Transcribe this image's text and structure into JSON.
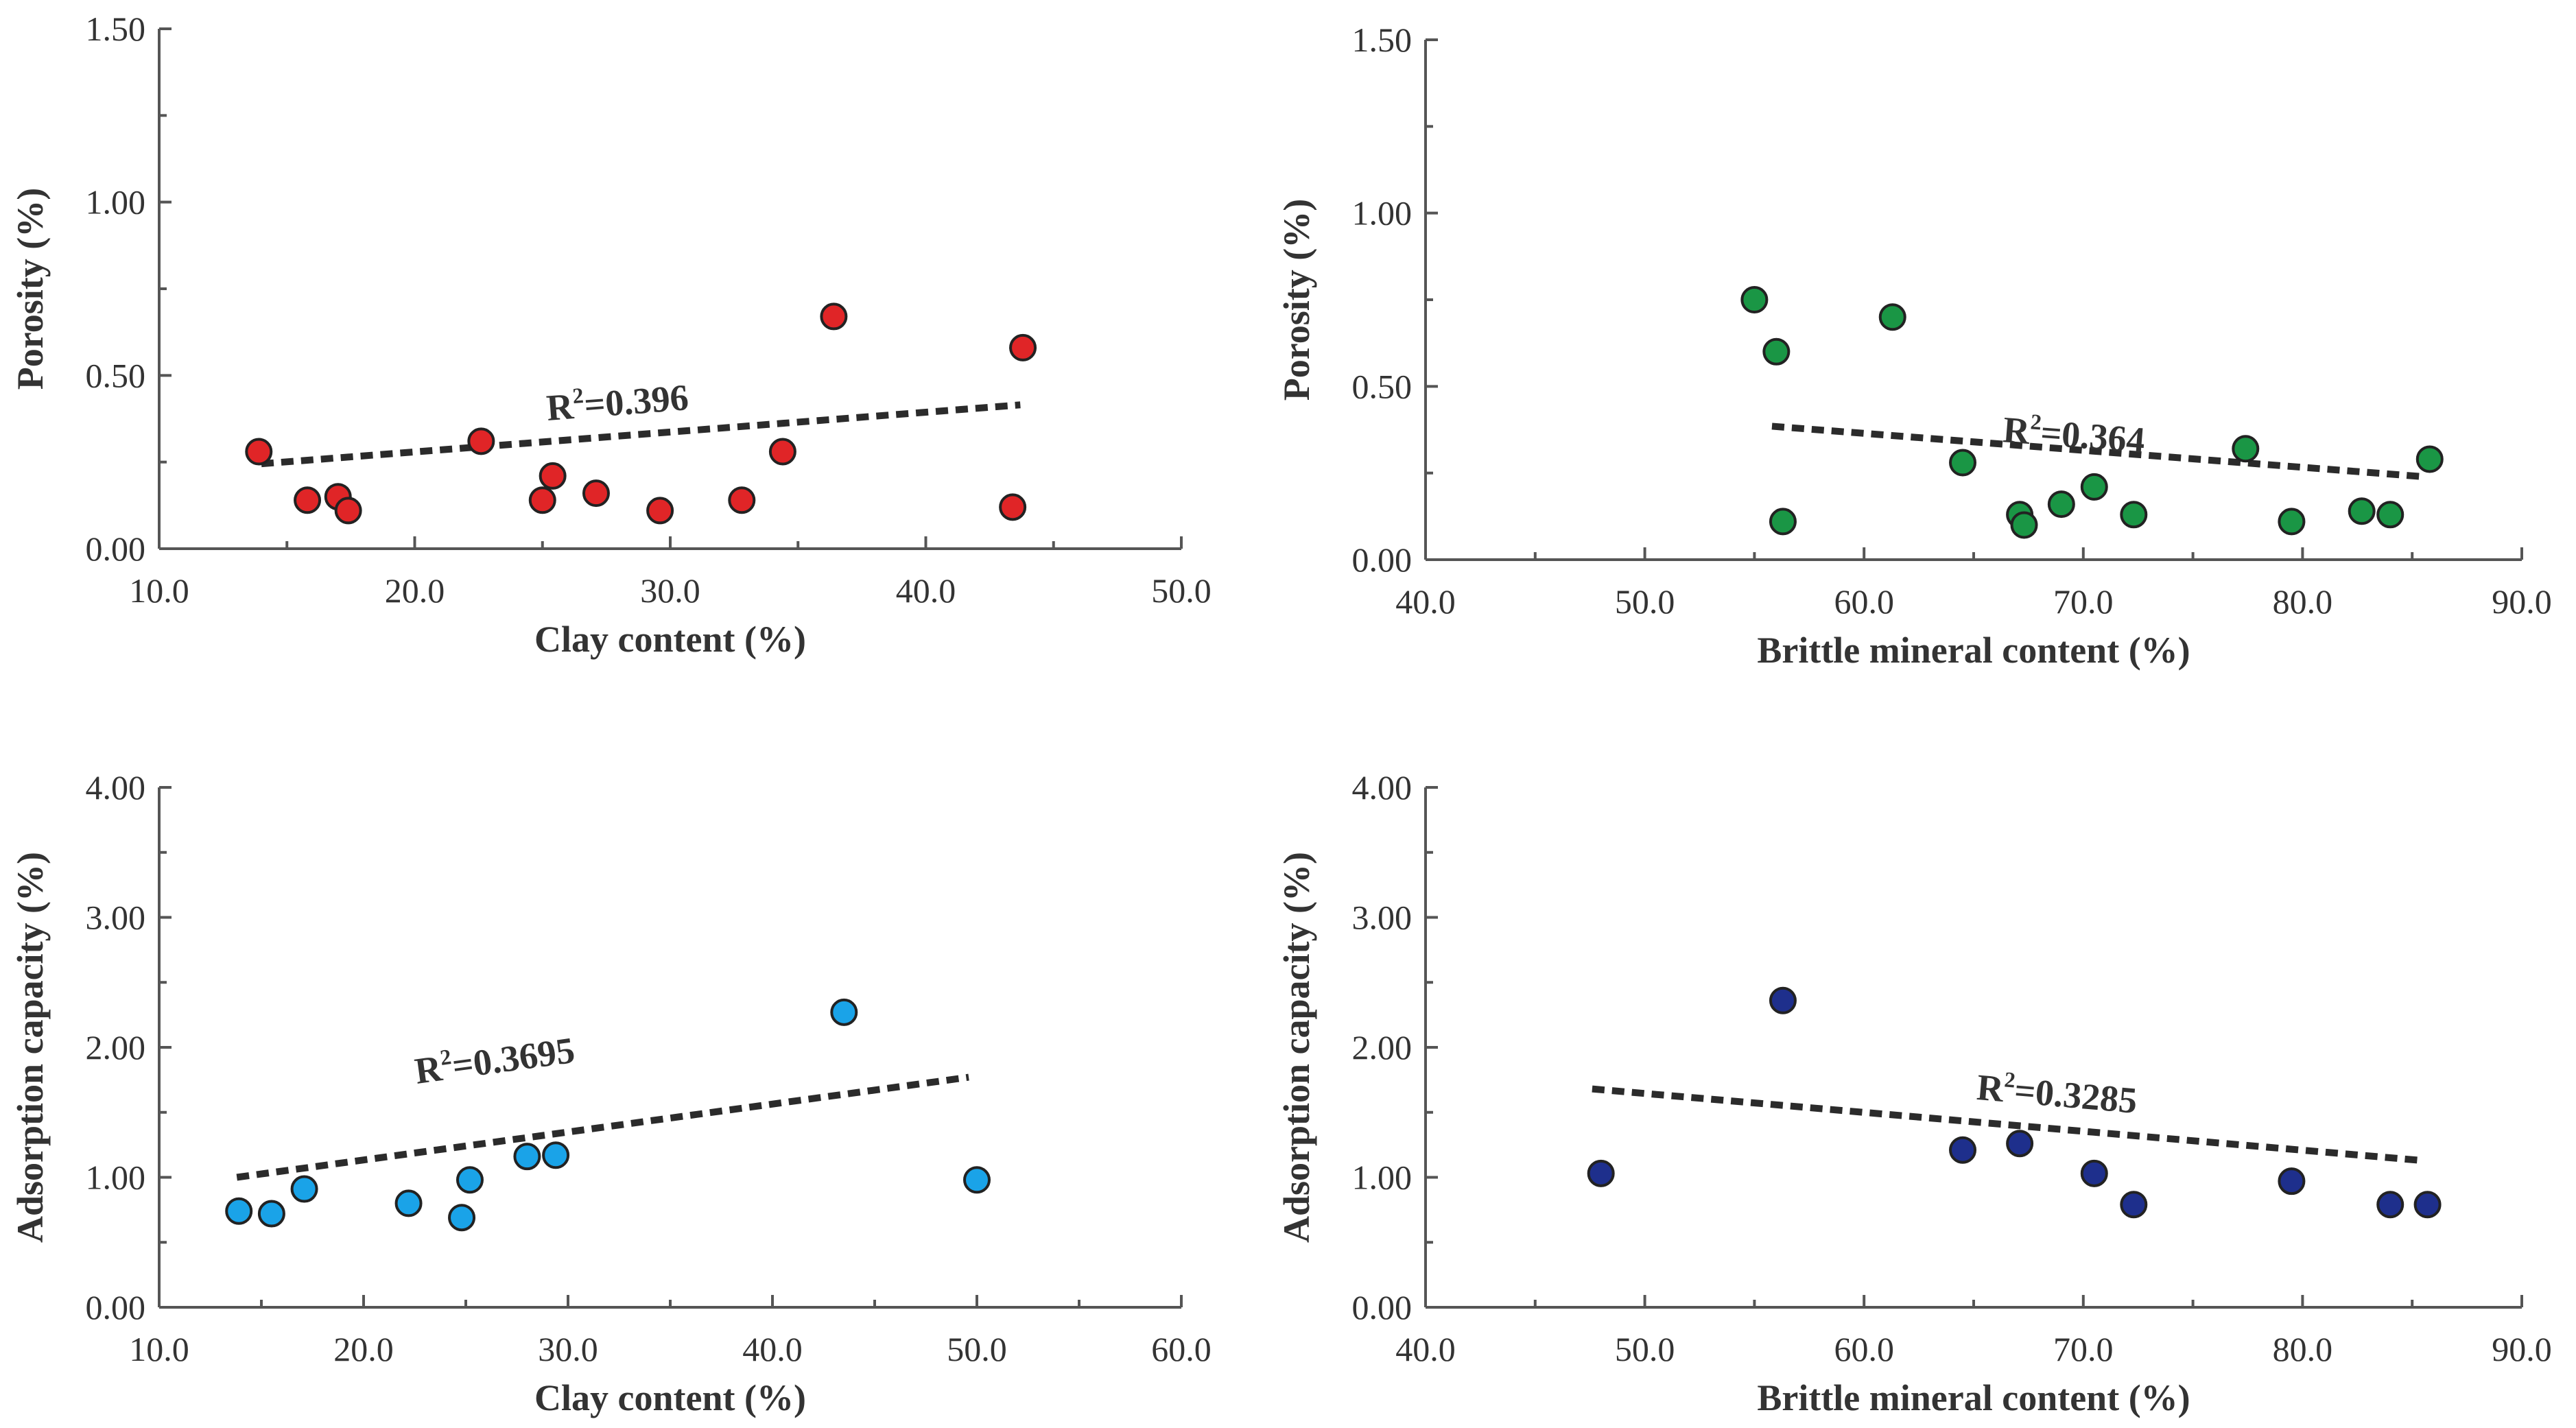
{
  "chart_data": [
    {
      "id": "clay-porosity",
      "type": "scatter",
      "xlabel": "Clay content (%)",
      "ylabel": "Porosity (%)",
      "xlim": [
        10,
        50
      ],
      "ylim": [
        0,
        1.5
      ],
      "x_ticks": [
        "10.0",
        "20.0",
        "30.0",
        "40.0",
        "50.0"
      ],
      "x_tick_values": [
        10,
        20,
        30,
        40,
        50
      ],
      "y_ticks": [
        "0.00",
        "0.50",
        "1.00",
        "1.50"
      ],
      "y_tick_values": [
        0,
        0.5,
        1.0,
        1.5
      ],
      "color": "#e02527",
      "points": [
        {
          "x": 13.9,
          "y": 0.28
        },
        {
          "x": 15.8,
          "y": 0.14
        },
        {
          "x": 17.0,
          "y": 0.15
        },
        {
          "x": 17.4,
          "y": 0.11
        },
        {
          "x": 22.6,
          "y": 0.31
        },
        {
          "x": 25.0,
          "y": 0.14
        },
        {
          "x": 25.4,
          "y": 0.21
        },
        {
          "x": 27.1,
          "y": 0.16
        },
        {
          "x": 29.6,
          "y": 0.11
        },
        {
          "x": 32.8,
          "y": 0.14
        },
        {
          "x": 34.4,
          "y": 0.28
        },
        {
          "x": 36.4,
          "y": 0.67
        },
        {
          "x": 43.4,
          "y": 0.12
        },
        {
          "x": 43.8,
          "y": 0.58
        }
      ],
      "trend": {
        "x": [
          14.0,
          43.7
        ],
        "y": [
          0.245,
          0.415
        ]
      },
      "r2_label": "R",
      "r2_sup": "2",
      "r2_value": "=0.396",
      "r2_anchor": {
        "x": 25.2,
        "y": 0.37
      }
    },
    {
      "id": "brittle-porosity",
      "type": "scatter",
      "xlabel": "Brittle mineral content (%)",
      "ylabel": "Porosity (%)",
      "xlim": [
        40,
        90
      ],
      "ylim": [
        0,
        1.5
      ],
      "x_ticks": [
        "40.0",
        "50.0",
        "60.0",
        "70.0",
        "80.0",
        "90.0"
      ],
      "x_tick_values": [
        40,
        50,
        60,
        70,
        80,
        90
      ],
      "y_ticks": [
        "0.00",
        "0.50",
        "1.00",
        "1.50"
      ],
      "y_tick_values": [
        0,
        0.5,
        1.0,
        1.5
      ],
      "color": "#1a9645",
      "points": [
        {
          "x": 55.0,
          "y": 0.75
        },
        {
          "x": 56.0,
          "y": 0.6
        },
        {
          "x": 56.3,
          "y": 0.11
        },
        {
          "x": 61.3,
          "y": 0.7
        },
        {
          "x": 64.5,
          "y": 0.28
        },
        {
          "x": 67.1,
          "y": 0.13
        },
        {
          "x": 67.3,
          "y": 0.1
        },
        {
          "x": 69.0,
          "y": 0.16
        },
        {
          "x": 70.5,
          "y": 0.21
        },
        {
          "x": 72.3,
          "y": 0.13
        },
        {
          "x": 77.4,
          "y": 0.32
        },
        {
          "x": 79.5,
          "y": 0.11
        },
        {
          "x": 82.7,
          "y": 0.14
        },
        {
          "x": 84.0,
          "y": 0.13
        },
        {
          "x": 85.8,
          "y": 0.29
        }
      ],
      "trend": {
        "x": [
          55.8,
          85.4
        ],
        "y": [
          0.385,
          0.24
        ]
      },
      "r2_label": "R",
      "r2_sup": "2",
      "r2_value": "=0.364",
      "r2_anchor": {
        "x": 66.3,
        "y": 0.34
      }
    },
    {
      "id": "clay-adsorption",
      "type": "scatter",
      "xlabel": "Clay content (%)",
      "ylabel": "Adsorption capacity (%)",
      "xlim": [
        10,
        60
      ],
      "ylim": [
        0,
        4
      ],
      "x_ticks": [
        "10.0",
        "20.0",
        "30.0",
        "40.0",
        "50.0",
        "60.0"
      ],
      "x_tick_values": [
        10,
        20,
        30,
        40,
        50,
        60
      ],
      "y_ticks": [
        "0.00",
        "1.00",
        "2.00",
        "3.00",
        "4.00"
      ],
      "y_tick_values": [
        0,
        1,
        2,
        3,
        4
      ],
      "color": "#1aa3e8",
      "points": [
        {
          "x": 13.9,
          "y": 0.74
        },
        {
          "x": 15.5,
          "y": 0.72
        },
        {
          "x": 17.1,
          "y": 0.91
        },
        {
          "x": 22.2,
          "y": 0.8
        },
        {
          "x": 24.8,
          "y": 0.69
        },
        {
          "x": 25.2,
          "y": 0.98
        },
        {
          "x": 28.0,
          "y": 1.16
        },
        {
          "x": 29.4,
          "y": 1.17
        },
        {
          "x": 43.5,
          "y": 2.27
        },
        {
          "x": 50.0,
          "y": 0.98
        }
      ],
      "trend": {
        "x": [
          13.8,
          49.6
        ],
        "y": [
          1.0,
          1.77
        ]
      },
      "r2_label": "R",
      "r2_sup": "2",
      "r2_value": "=0.3695",
      "r2_anchor": {
        "x": 22.6,
        "y": 1.72
      }
    },
    {
      "id": "brittle-adsorption",
      "type": "scatter",
      "xlabel": "Brittle mineral content (%)",
      "ylabel": "Adsorption capacity (%)",
      "xlim": [
        40,
        90
      ],
      "ylim": [
        0,
        4
      ],
      "x_ticks": [
        "40.0",
        "50.0",
        "60.0",
        "70.0",
        "80.0",
        "90.0"
      ],
      "x_tick_values": [
        40,
        50,
        60,
        70,
        80,
        90
      ],
      "y_ticks": [
        "0.00",
        "1.00",
        "2.00",
        "3.00",
        "4.00"
      ],
      "y_tick_values": [
        0,
        1,
        2,
        3,
        4
      ],
      "color": "#1e2f8c",
      "points": [
        {
          "x": 48.0,
          "y": 1.03
        },
        {
          "x": 56.3,
          "y": 2.36
        },
        {
          "x": 64.5,
          "y": 1.21
        },
        {
          "x": 67.1,
          "y": 1.26
        },
        {
          "x": 70.5,
          "y": 1.03
        },
        {
          "x": 72.3,
          "y": 0.79
        },
        {
          "x": 79.5,
          "y": 0.97
        },
        {
          "x": 84.0,
          "y": 0.79
        },
        {
          "x": 85.7,
          "y": 0.79
        }
      ],
      "trend": {
        "x": [
          47.6,
          85.4
        ],
        "y": [
          1.68,
          1.13
        ]
      },
      "r2_label": "R",
      "r2_sup": "2",
      "r2_value": "=0.3285",
      "r2_anchor": {
        "x": 65.1,
        "y": 1.6
      }
    }
  ]
}
